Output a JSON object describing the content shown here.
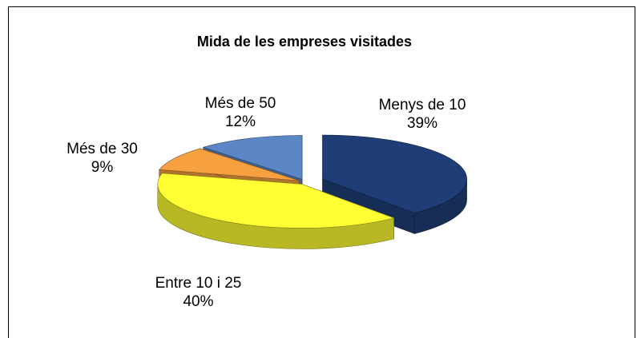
{
  "chart_data": {
    "type": "pie",
    "title": "Mida de les empreses visitades",
    "categories": [
      "Menys de 10",
      "Entre 10 i 25",
      "Més de 30",
      "Més de 50"
    ],
    "values": [
      39,
      40,
      9,
      12
    ],
    "value_labels": [
      "39%",
      "40%",
      "9%",
      "12%"
    ],
    "colors": [
      "#1f3e78",
      "#ffff33",
      "#f7a040",
      "#5b87c6"
    ]
  }
}
